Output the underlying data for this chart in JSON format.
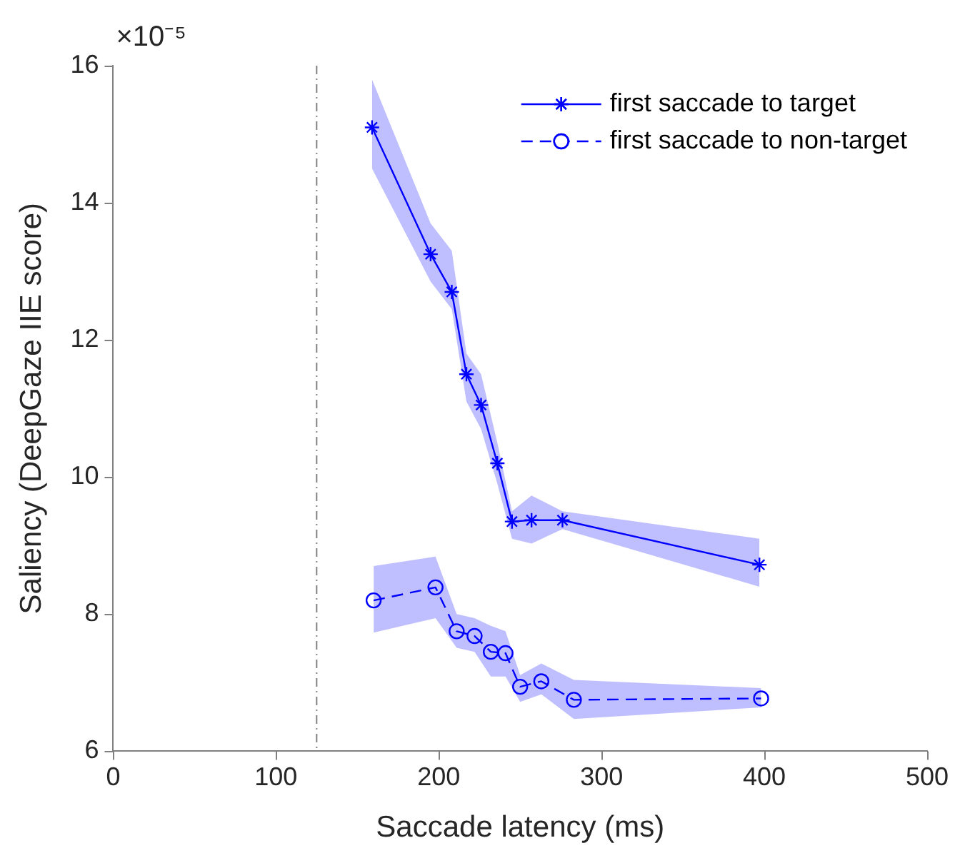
{
  "chart_data": {
    "type": "line",
    "xlabel": "Saccade latency (ms)",
    "ylabel": "Saliency (DeepGaze IIE score)",
    "xlim": [
      0,
      500
    ],
    "xticks": [
      0,
      100,
      200,
      300,
      400,
      500
    ],
    "ylim": [
      6,
      16
    ],
    "yticks": [
      6,
      8,
      10,
      12,
      14,
      16
    ],
    "annotations": [
      "×10⁻⁵"
    ],
    "grid": false,
    "legend": "top right",
    "ref_lines": [
      {
        "axis": "x",
        "value": 125,
        "color": "#808080",
        "line_style": "dashed"
      }
    ],
    "series": [
      {
        "name": "first saccade to target",
        "color": "#0000ff",
        "marker": "cross",
        "line_style": "solid",
        "x": [
          159,
          195,
          208,
          217,
          226,
          236,
          245,
          257,
          276,
          397
        ],
        "values": [
          15.1,
          13.25,
          12.7,
          11.5,
          11.05,
          10.2,
          9.35,
          9.37,
          9.37,
          8.72
        ],
        "lower": [
          14.5,
          12.85,
          12.45,
          11.1,
          10.7,
          9.9,
          9.1,
          9.03,
          9.24,
          8.4
        ],
        "upper": [
          15.8,
          13.7,
          13.3,
          11.8,
          11.5,
          10.5,
          9.5,
          9.73,
          9.5,
          9.1
        ]
      },
      {
        "name": "first saccade to non-target",
        "color": "#0000ff",
        "marker": "circle",
        "line_style": "dashed",
        "x": [
          160,
          198,
          211,
          222,
          232,
          241,
          250,
          263,
          283,
          398
        ],
        "values": [
          8.2,
          8.39,
          7.75,
          7.68,
          7.45,
          7.43,
          6.94,
          7.02,
          6.75,
          6.77
        ],
        "lower": [
          7.73,
          7.94,
          7.51,
          7.45,
          7.09,
          7.09,
          6.72,
          6.83,
          6.47,
          6.64
        ],
        "upper": [
          8.7,
          8.84,
          8.0,
          7.94,
          7.83,
          7.75,
          7.11,
          7.28,
          7.04,
          6.92
        ]
      }
    ]
  }
}
